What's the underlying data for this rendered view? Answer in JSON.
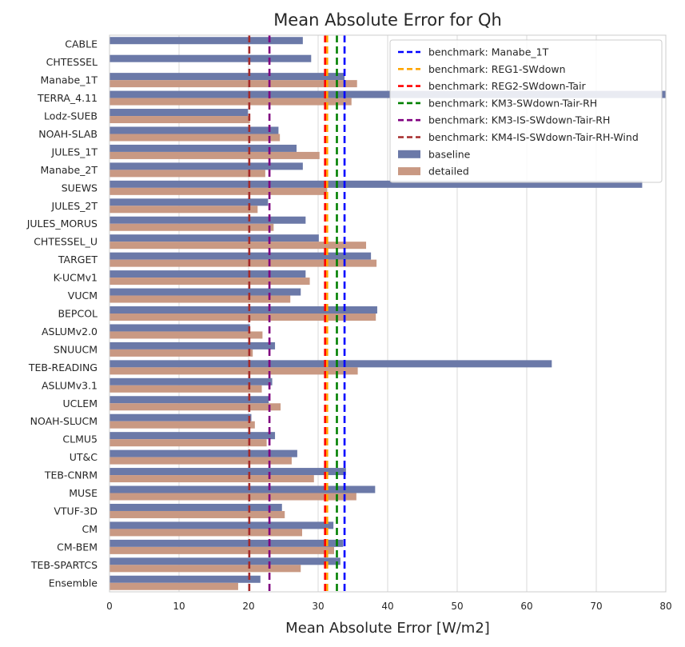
{
  "chart_data": {
    "type": "bar",
    "orientation": "horizontal",
    "title": "Mean Absolute Error for Qh",
    "xlabel": "Mean Absolute Error [W/m2]",
    "ylabel": "",
    "xlim": [
      0,
      80
    ],
    "xticks": [
      "0",
      "10",
      "20",
      "30",
      "40",
      "50",
      "60",
      "70",
      "80"
    ],
    "grid": "vertical",
    "legend_position": "top-right",
    "categories": [
      "CABLE",
      "CHTESSEL",
      "Manabe_1T",
      "TERRA_4.11",
      "Lodz-SUEB",
      "NOAH-SLAB",
      "JULES_1T",
      "Manabe_2T",
      "SUEWS",
      "JULES_2T",
      "JULES_MORUS",
      "CHTESSEL_U",
      "TARGET",
      "K-UCMv1",
      "VUCM",
      "BEPCOL",
      "ASLUMv2.0",
      "SNUUCM",
      "TEB-READING",
      "ASLUMv3.1",
      "UCLEM",
      "NOAH-SLUCM",
      "CLMU5",
      "UT&C",
      "TEB-CNRM",
      "MUSE",
      "VTUF-3D",
      "CM",
      "CM-BEM",
      "TEB-SPARTCS",
      "Ensemble"
    ],
    "series": [
      {
        "name": "baseline",
        "color": "#6b79a8",
        "values": [
          27.8,
          29.0,
          33.8,
          80.0,
          19.9,
          24.3,
          26.9,
          27.8,
          76.6,
          22.8,
          28.2,
          30.1,
          37.6,
          28.2,
          27.5,
          38.5,
          20.2,
          23.8,
          63.6,
          23.4,
          22.9,
          20.4,
          23.8,
          27.0,
          34.0,
          38.2,
          24.8,
          32.2,
          33.6,
          33.2,
          21.7
        ]
      },
      {
        "name": "detailed",
        "color": "#c99983",
        "values": [
          null,
          null,
          35.6,
          34.8,
          20.2,
          24.5,
          30.2,
          22.4,
          31.3,
          21.3,
          23.6,
          36.9,
          38.4,
          28.8,
          26.0,
          38.3,
          22.0,
          20.6,
          35.7,
          21.9,
          24.6,
          20.9,
          22.6,
          26.2,
          29.4,
          35.5,
          25.2,
          27.7,
          32.3,
          27.5,
          18.5
        ]
      }
    ],
    "benchmarks": [
      {
        "name": "benchmark: Manabe_1T",
        "value": 33.8,
        "color": "#0000ff"
      },
      {
        "name": "benchmark: REG1-SWdown",
        "value": 31.3,
        "color": "#ffa500"
      },
      {
        "name": "benchmark: REG2-SWdown-Tair",
        "value": 31.0,
        "color": "#ff0000"
      },
      {
        "name": "benchmark: KM3-SWdown-Tair-RH",
        "value": 32.7,
        "color": "#008000"
      },
      {
        "name": "benchmark: KM3-IS-SWdown-Tair-RH",
        "value": 23.0,
        "color": "#800080"
      },
      {
        "name": "benchmark: KM4-IS-SWdown-Tair-RH-Wind",
        "value": 20.1,
        "color": "#a52a2a"
      }
    ]
  }
}
